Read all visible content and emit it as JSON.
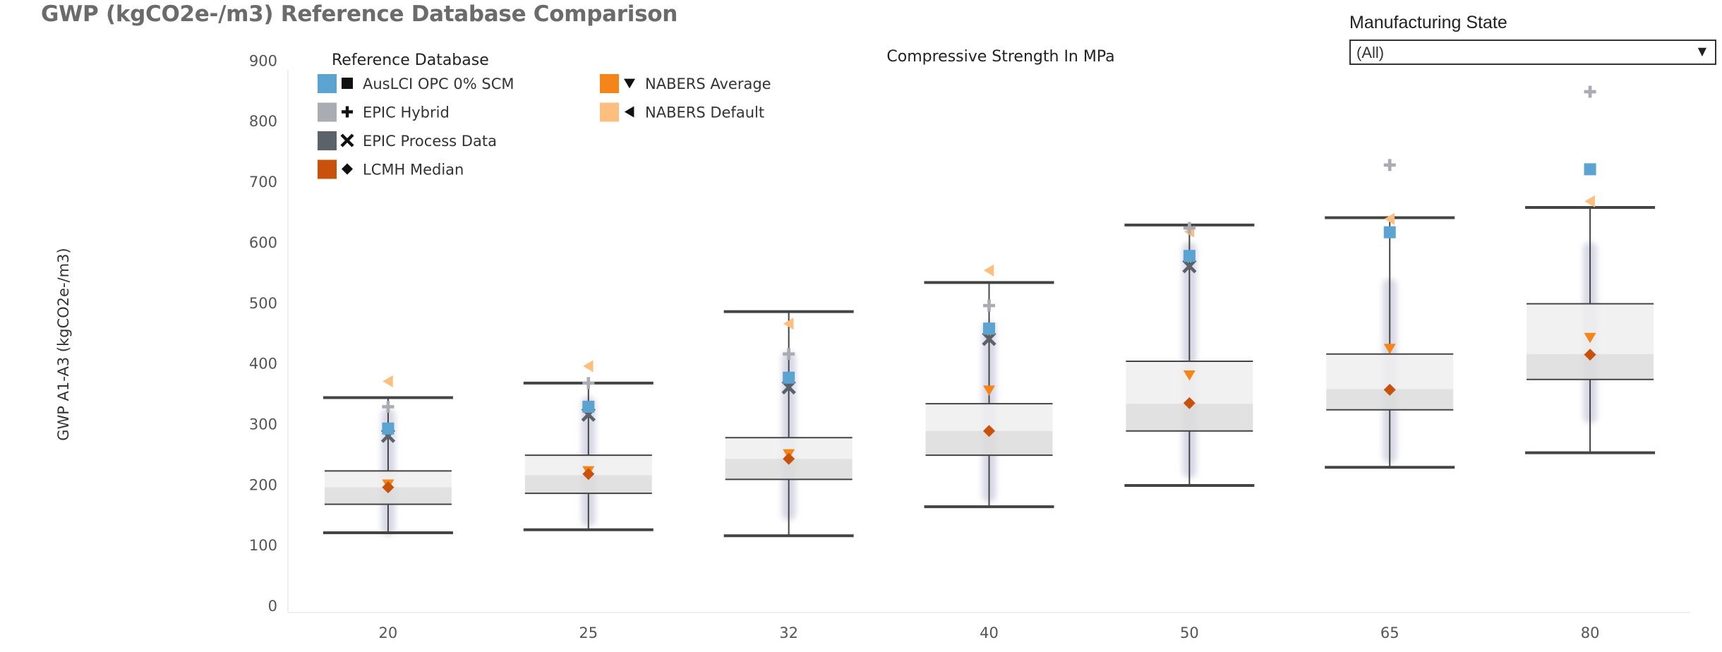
{
  "title": "GWP (kgCO2e-/m3) Reference Database Comparison",
  "filter": {
    "label": "Manufacturing State",
    "value": "(All)",
    "arrow_icon": "triangle-down-icon"
  },
  "chart_data": {
    "type": "box",
    "x_title_top": "Compressive Strength In MPa",
    "ylabel": "GWP A1-A3 (kgCO2e-/m3)",
    "ylim": [
      0,
      920
    ],
    "yticks": [
      0,
      100,
      200,
      300,
      400,
      500,
      600,
      700,
      800,
      900
    ],
    "categories": [
      "20",
      "25",
      "32",
      "40",
      "50",
      "65",
      "80"
    ],
    "legend": {
      "title": "Reference Database",
      "position": "top-left",
      "entries": [
        {
          "name": "AusLCI OPC 0% SCM",
          "color": "#5ba3d0",
          "shape": "square"
        },
        {
          "name": "EPIC Hybrid",
          "color": "#a9adb3",
          "shape": "plus"
        },
        {
          "name": "EPIC Process Data",
          "color": "#5c6269",
          "shape": "cross"
        },
        {
          "name": "LCMH Median",
          "color": "#c8520a",
          "shape": "diamond"
        },
        {
          "name": "NABERS Average",
          "color": "#f58518",
          "shape": "triangle-down"
        },
        {
          "name": "NABERS Default",
          "color": "#fdbf7f",
          "shape": "triangle-left"
        }
      ]
    },
    "boxes": [
      {
        "category": "20",
        "whisker_low": 120,
        "q1": 167,
        "median": 195,
        "q3": 222,
        "whisker_high": 343,
        "dist_low": 115,
        "dist_high": 325
      },
      {
        "category": "25",
        "whisker_low": 125,
        "q1": 185,
        "median": 215,
        "q3": 248,
        "whisker_high": 367,
        "dist_low": 130,
        "dist_high": 345
      },
      {
        "category": "32",
        "whisker_low": 115,
        "q1": 208,
        "median": 242,
        "q3": 277,
        "whisker_high": 485,
        "dist_low": 140,
        "dist_high": 420
      },
      {
        "category": "40",
        "whisker_low": 163,
        "q1": 248,
        "median": 288,
        "q3": 333,
        "whisker_high": 533,
        "dist_low": 170,
        "dist_high": 470
      },
      {
        "category": "50",
        "whisker_low": 198,
        "q1": 288,
        "median": 333,
        "q3": 403,
        "whisker_high": 628,
        "dist_low": 210,
        "dist_high": 600
      },
      {
        "category": "65",
        "whisker_low": 228,
        "q1": 323,
        "median": 357,
        "q3": 415,
        "whisker_high": 640,
        "dist_low": 235,
        "dist_high": 540
      },
      {
        "category": "80",
        "whisker_low": 252,
        "q1": 373,
        "median": 415,
        "q3": 498,
        "whisker_high": 657,
        "dist_low": 300,
        "dist_high": 600
      }
    ],
    "series": [
      {
        "name": "AusLCI OPC 0% SCM",
        "values": [
          292,
          328,
          376,
          457,
          577,
          616,
          720
        ]
      },
      {
        "name": "EPIC Hybrid",
        "values": [
          328,
          367,
          415,
          495,
          623,
          727,
          848
        ]
      },
      {
        "name": "EPIC Process Data",
        "values": [
          280,
          315,
          360,
          440,
          560,
          null,
          null
        ]
      },
      {
        "name": "LCMH Median",
        "values": [
          195,
          217,
          242,
          288,
          334,
          356,
          414
        ]
      },
      {
        "name": "NABERS Average",
        "values": [
          200,
          222,
          250,
          355,
          380,
          424,
          442
        ]
      },
      {
        "name": "NABERS Default",
        "values": [
          370,
          395,
          465,
          553,
          617,
          638,
          667
        ]
      }
    ]
  }
}
